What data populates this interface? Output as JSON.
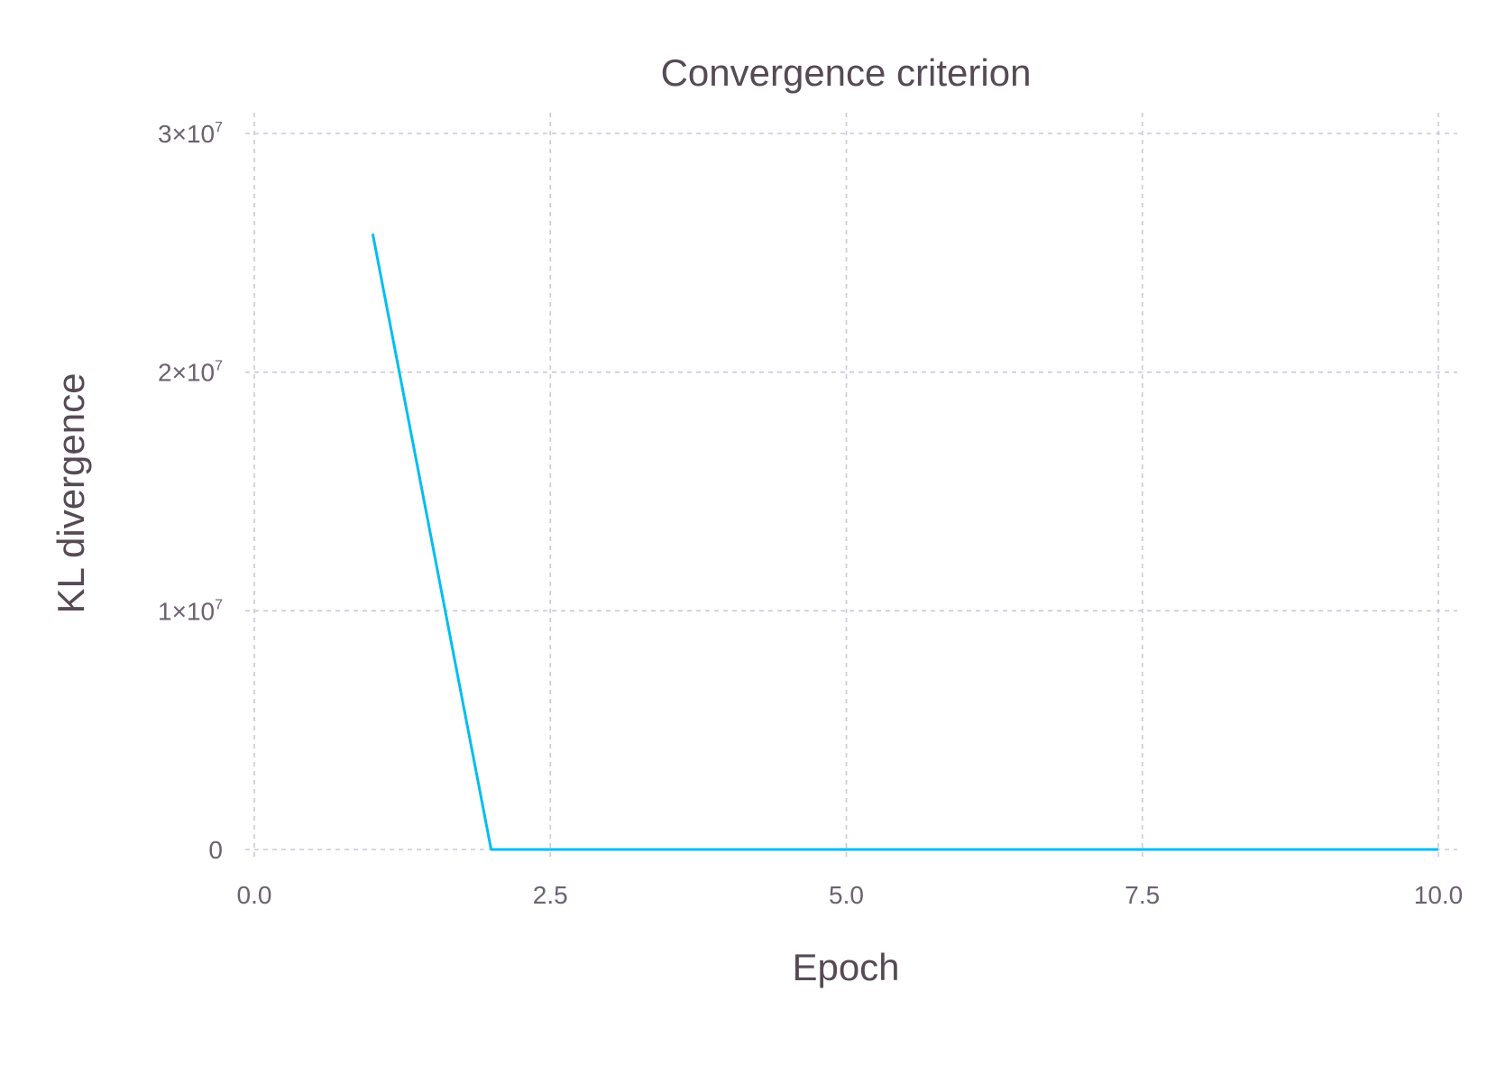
{
  "chart_data": {
    "type": "line",
    "title": "Convergence criterion",
    "xlabel": "Epoch",
    "ylabel": "KL divergence",
    "xlim": [
      0,
      10
    ],
    "ylim": [
      -400000,
      30000000
    ],
    "grid": true,
    "x_ticks": [
      {
        "value": 0,
        "label": "0.0"
      },
      {
        "value": 2.5,
        "label": "2.5"
      },
      {
        "value": 5,
        "label": "5.0"
      },
      {
        "value": 7.5,
        "label": "7.5"
      },
      {
        "value": 10,
        "label": "10.0"
      }
    ],
    "y_ticks": [
      {
        "value": 0,
        "mantissa": "0",
        "exponent": ""
      },
      {
        "value": 10000000,
        "mantissa": "1×10",
        "exponent": "7"
      },
      {
        "value": 20000000,
        "mantissa": "2×10",
        "exponent": "7"
      },
      {
        "value": 30000000,
        "mantissa": "3×10",
        "exponent": "7"
      }
    ],
    "series": [
      {
        "color": "#00bdf2",
        "x": [
          1,
          2,
          3,
          4,
          5,
          6,
          7,
          8,
          9,
          10
        ],
        "y": [
          25800000,
          0,
          0,
          0,
          0,
          0,
          0,
          0,
          0,
          0
        ]
      }
    ]
  }
}
